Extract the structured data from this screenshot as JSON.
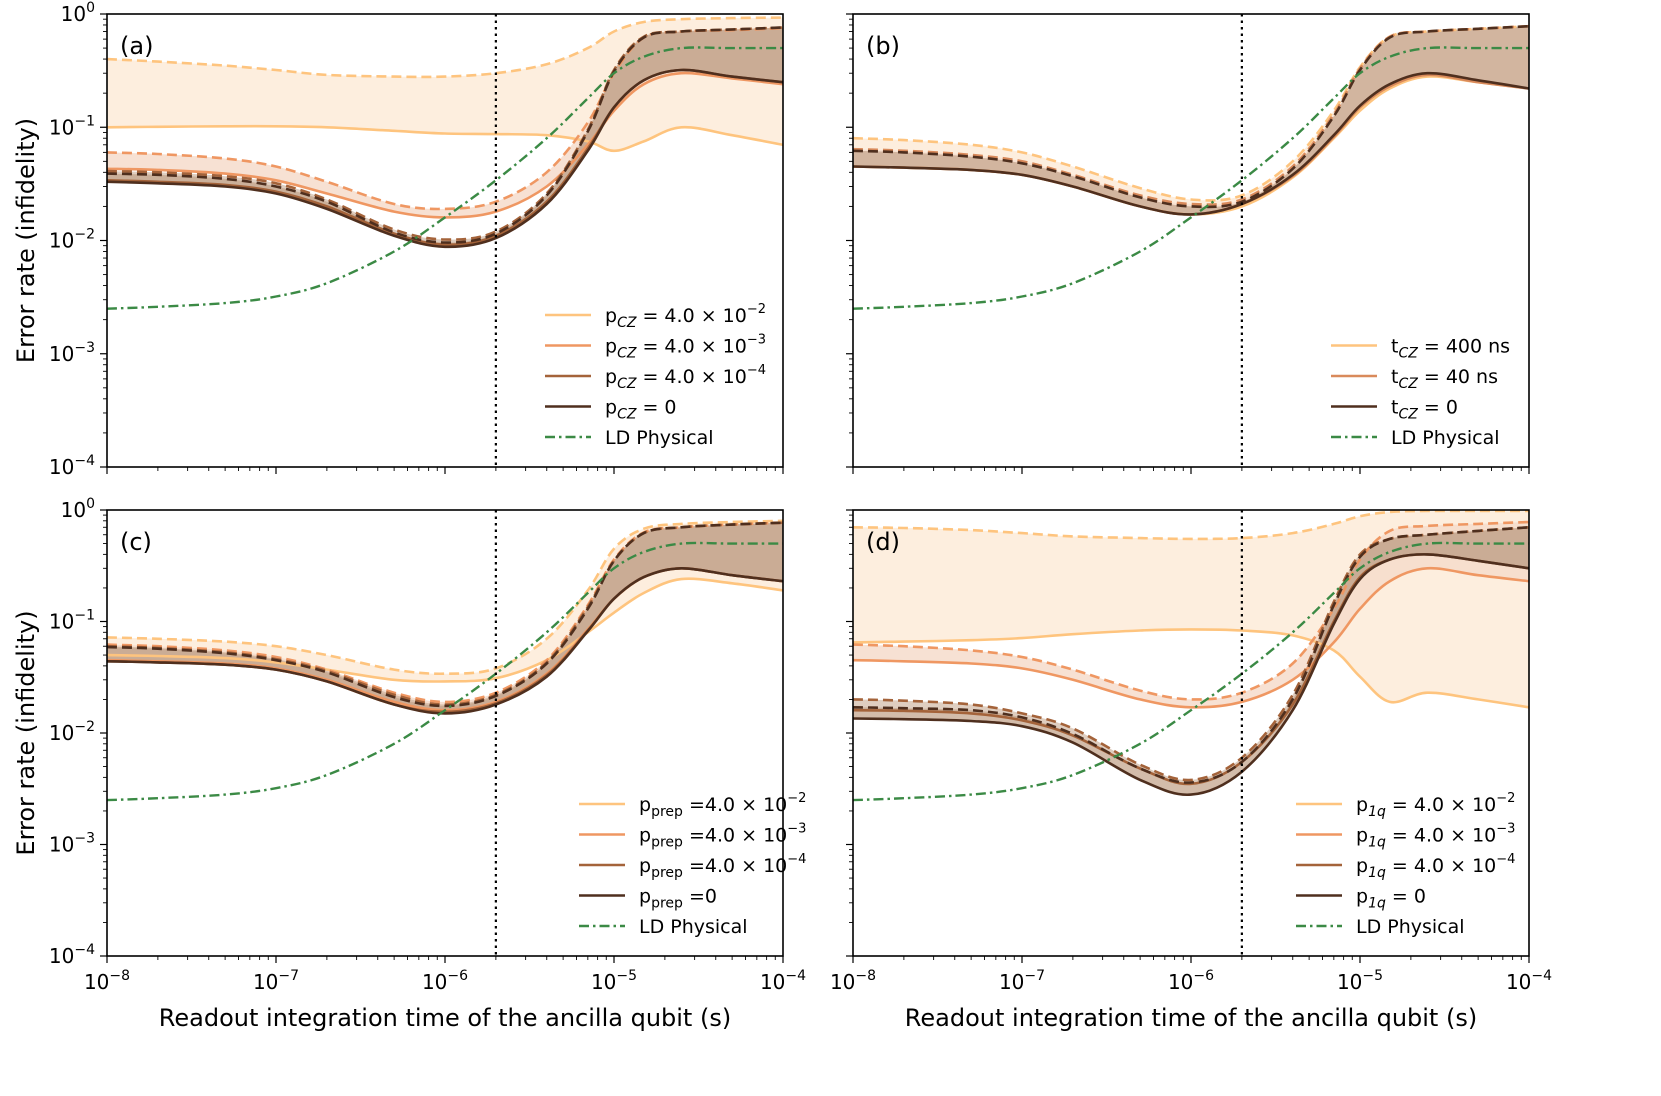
{
  "chart_data": [
    {
      "type": "line",
      "panel_label": "(a)",
      "xscale": "log",
      "yscale": "log",
      "xlim": [
        1e-08,
        0.0001
      ],
      "ylim": [
        0.0001,
        1
      ],
      "xlabel": "",
      "ylabel": "Error rate (infidelity)",
      "x_tick_labels": [],
      "y_tick_labels": [
        {
          "base": "10",
          "exp": "0"
        },
        {
          "base": "10",
          "exp": "−1"
        },
        {
          "base": "10",
          "exp": "−2"
        },
        {
          "base": "10",
          "exp": "−3"
        },
        {
          "base": "10",
          "exp": "−4"
        }
      ],
      "vline_x": 2e-06,
      "legend_position": "lower-right",
      "x": [
        1e-08,
        2e-08,
        5e-08,
        1e-07,
        2e-07,
        5e-07,
        1e-06,
        2e-06,
        4e-06,
        7e-06,
        1e-05,
        1.5e-05,
        2.5e-05,
        5e-05,
        0.0001
      ],
      "series": [
        {
          "name": "p_CZ = 4.0 × 10⁻²",
          "legend": {
            "sym": "p",
            "sub": "CZ",
            "sub_italic": true,
            "rest": " = 4.0 × 10",
            "exp": "−2"
          },
          "color_key": "light",
          "solid": [
            0.1,
            0.101,
            0.102,
            0.102,
            0.1,
            0.093,
            0.088,
            0.087,
            0.085,
            0.075,
            0.062,
            0.075,
            0.1,
            0.085,
            0.07
          ],
          "dashed": [
            0.4,
            0.38,
            0.35,
            0.32,
            0.29,
            0.28,
            0.28,
            0.3,
            0.36,
            0.5,
            0.7,
            0.85,
            0.9,
            0.92,
            0.93
          ]
        },
        {
          "name": "p_CZ = 4.0 × 10⁻³",
          "legend": {
            "sym": "p",
            "sub": "CZ",
            "sub_italic": true,
            "rest": " = 4.0 × 10",
            "exp": "−3"
          },
          "color_key": "mid",
          "solid": [
            0.043,
            0.042,
            0.039,
            0.034,
            0.026,
            0.018,
            0.016,
            0.018,
            0.03,
            0.07,
            0.14,
            0.24,
            0.3,
            0.27,
            0.24
          ],
          "dashed": [
            0.06,
            0.058,
            0.053,
            0.045,
            0.033,
            0.021,
            0.019,
            0.022,
            0.04,
            0.11,
            0.3,
            0.62,
            0.7,
            0.72,
            0.75
          ]
        },
        {
          "name": "p_CZ = 4.0 × 10⁻⁴",
          "legend": {
            "sym": "p",
            "sub": "CZ",
            "sub_italic": true,
            "rest": " = 4.0 × 10",
            "exp": "−4"
          },
          "color_key": "brown",
          "solid": [
            0.034,
            0.033,
            0.031,
            0.027,
            0.02,
            0.0115,
            0.0092,
            0.011,
            0.022,
            0.065,
            0.15,
            0.26,
            0.32,
            0.28,
            0.25
          ],
          "dashed": [
            0.041,
            0.04,
            0.037,
            0.032,
            0.023,
            0.0125,
            0.0102,
            0.012,
            0.026,
            0.095,
            0.32,
            0.63,
            0.7,
            0.73,
            0.76
          ]
        },
        {
          "name": "p_CZ = 0",
          "legend": {
            "sym": "p",
            "sub": "CZ",
            "sub_italic": true,
            "rest": " = 0",
            "exp": ""
          },
          "color_key": "dark",
          "solid": [
            0.033,
            0.032,
            0.03,
            0.026,
            0.019,
            0.011,
            0.0088,
            0.0105,
            0.021,
            0.062,
            0.15,
            0.26,
            0.32,
            0.28,
            0.25
          ],
          "dashed": [
            0.039,
            0.038,
            0.035,
            0.03,
            0.022,
            0.0118,
            0.0096,
            0.0115,
            0.025,
            0.092,
            0.31,
            0.62,
            0.7,
            0.73,
            0.76
          ]
        }
      ]
    },
    {
      "type": "line",
      "panel_label": "(b)",
      "xscale": "log",
      "yscale": "log",
      "xlim": [
        1e-08,
        0.0001
      ],
      "ylim": [
        0.0001,
        1
      ],
      "xlabel": "",
      "ylabel": "",
      "x_tick_labels": [],
      "y_tick_labels": [],
      "vline_x": 2e-06,
      "legend_position": "lower-right",
      "x": [
        1e-08,
        2e-08,
        5e-08,
        1e-07,
        2e-07,
        5e-07,
        1e-06,
        2e-06,
        4e-06,
        7e-06,
        1e-05,
        1.5e-05,
        2.5e-05,
        5e-05,
        0.0001
      ],
      "series": [
        {
          "name": "t_CZ = 400 ns",
          "legend": {
            "sym": "t",
            "sub": "CZ",
            "sub_italic": true,
            "rest": " = 400 ns",
            "exp": ""
          },
          "color_key": "light",
          "solid": [
            0.045,
            0.044,
            0.042,
            0.038,
            0.03,
            0.02,
            0.017,
            0.02,
            0.036,
            0.08,
            0.14,
            0.22,
            0.28,
            0.25,
            0.22
          ],
          "dashed": [
            0.08,
            0.077,
            0.07,
            0.06,
            0.045,
            0.029,
            0.023,
            0.025,
            0.05,
            0.14,
            0.34,
            0.63,
            0.7,
            0.74,
            0.78
          ]
        },
        {
          "name": "t_CZ = 40 ns",
          "legend": {
            "sym": "t",
            "sub": "CZ",
            "sub_italic": true,
            "rest": " = 40 ns",
            "exp": ""
          },
          "color_key": "mid2",
          "solid": [
            0.045,
            0.044,
            0.042,
            0.038,
            0.03,
            0.02,
            0.017,
            0.021,
            0.037,
            0.082,
            0.15,
            0.23,
            0.29,
            0.25,
            0.22
          ],
          "dashed": [
            0.064,
            0.062,
            0.057,
            0.05,
            0.038,
            0.025,
            0.021,
            0.023,
            0.045,
            0.13,
            0.33,
            0.63,
            0.7,
            0.74,
            0.78
          ]
        },
        {
          "name": "t_CZ = 0",
          "legend": {
            "sym": "t",
            "sub": "CZ",
            "sub_italic": true,
            "rest": " = 0",
            "exp": ""
          },
          "color_key": "dark",
          "solid": [
            0.045,
            0.044,
            0.042,
            0.038,
            0.03,
            0.02,
            0.017,
            0.021,
            0.038,
            0.085,
            0.155,
            0.24,
            0.3,
            0.26,
            0.22
          ],
          "dashed": [
            0.062,
            0.06,
            0.055,
            0.048,
            0.037,
            0.024,
            0.02,
            0.022,
            0.043,
            0.125,
            0.32,
            0.62,
            0.7,
            0.74,
            0.78
          ]
        }
      ]
    },
    {
      "type": "line",
      "panel_label": "(c)",
      "xscale": "log",
      "yscale": "log",
      "xlim": [
        1e-08,
        0.0001
      ],
      "ylim": [
        0.0001,
        1
      ],
      "xlabel": "Readout integration time of the ancilla qubit (s)",
      "ylabel": "Error rate (infidelity)",
      "x_tick_labels": [
        {
          "base": "10",
          "exp": "−8"
        },
        {
          "base": "10",
          "exp": "−7"
        },
        {
          "base": "10",
          "exp": "−6"
        },
        {
          "base": "10",
          "exp": "−5"
        },
        {
          "base": "10",
          "exp": "−4"
        }
      ],
      "y_tick_labels": [
        {
          "base": "10",
          "exp": "0"
        },
        {
          "base": "10",
          "exp": "−1"
        },
        {
          "base": "10",
          "exp": "−2"
        },
        {
          "base": "10",
          "exp": "−3"
        },
        {
          "base": "10",
          "exp": "−4"
        }
      ],
      "vline_x": 2e-06,
      "legend_position": "lower-right",
      "x": [
        1e-08,
        2e-08,
        5e-08,
        1e-07,
        2e-07,
        5e-07,
        1e-06,
        2e-06,
        4e-06,
        7e-06,
        1e-05,
        1.5e-05,
        2.5e-05,
        5e-05,
        0.0001
      ],
      "series": [
        {
          "name": "p_prep = 4.0 × 10⁻²",
          "legend": {
            "sym": "p",
            "sub": "prep",
            "sub_italic": false,
            "rest": " =4.0 × 10",
            "exp": "−2"
          },
          "color_key": "light",
          "solid": [
            0.05,
            0.049,
            0.047,
            0.043,
            0.037,
            0.03,
            0.029,
            0.031,
            0.045,
            0.08,
            0.12,
            0.18,
            0.24,
            0.22,
            0.19
          ],
          "dashed": [
            0.072,
            0.07,
            0.066,
            0.06,
            0.05,
            0.037,
            0.034,
            0.038,
            0.07,
            0.19,
            0.45,
            0.68,
            0.75,
            0.78,
            0.8
          ]
        },
        {
          "name": "p_prep = 4.0 × 10⁻³",
          "legend": {
            "sym": "p",
            "sub": "prep",
            "sub_italic": false,
            "rest": " =4.0 × 10",
            "exp": "−3"
          },
          "color_key": "mid",
          "solid": [
            0.045,
            0.044,
            0.042,
            0.038,
            0.03,
            0.019,
            0.016,
            0.019,
            0.034,
            0.085,
            0.16,
            0.25,
            0.3,
            0.26,
            0.23
          ],
          "dashed": [
            0.062,
            0.06,
            0.055,
            0.048,
            0.037,
            0.023,
            0.019,
            0.023,
            0.045,
            0.14,
            0.36,
            0.63,
            0.7,
            0.74,
            0.77
          ]
        },
        {
          "name": "p_prep = 4.0 × 10⁻⁴",
          "legend": {
            "sym": "p",
            "sub": "prep",
            "sub_italic": false,
            "rest": " =4.0 × 10",
            "exp": "−4"
          },
          "color_key": "brown",
          "solid": [
            0.044,
            0.043,
            0.041,
            0.037,
            0.029,
            0.018,
            0.0155,
            0.0185,
            0.033,
            0.083,
            0.16,
            0.25,
            0.3,
            0.26,
            0.23
          ],
          "dashed": [
            0.06,
            0.058,
            0.053,
            0.046,
            0.036,
            0.022,
            0.018,
            0.022,
            0.043,
            0.135,
            0.35,
            0.62,
            0.7,
            0.74,
            0.77
          ]
        },
        {
          "name": "p_prep = 0",
          "legend": {
            "sym": "p",
            "sub": "prep",
            "sub_italic": false,
            "rest": " =0",
            "exp": ""
          },
          "color_key": "dark",
          "solid": [
            0.044,
            0.043,
            0.041,
            0.037,
            0.029,
            0.018,
            0.015,
            0.018,
            0.032,
            0.082,
            0.16,
            0.25,
            0.3,
            0.26,
            0.23
          ],
          "dashed": [
            0.059,
            0.057,
            0.052,
            0.045,
            0.035,
            0.021,
            0.0175,
            0.0215,
            0.042,
            0.13,
            0.35,
            0.62,
            0.7,
            0.74,
            0.77
          ]
        }
      ]
    },
    {
      "type": "line",
      "panel_label": "(d)",
      "xscale": "log",
      "yscale": "log",
      "xlim": [
        1e-08,
        0.0001
      ],
      "ylim": [
        0.0001,
        1
      ],
      "xlabel": "Readout integration time of the ancilla qubit (s)",
      "ylabel": "",
      "x_tick_labels": [
        {
          "base": "10",
          "exp": "−8"
        },
        {
          "base": "10",
          "exp": "−7"
        },
        {
          "base": "10",
          "exp": "−6"
        },
        {
          "base": "10",
          "exp": "−5"
        },
        {
          "base": "10",
          "exp": "−4"
        }
      ],
      "y_tick_labels": [],
      "vline_x": 2e-06,
      "legend_position": "lower-right",
      "x": [
        1e-08,
        2e-08,
        5e-08,
        1e-07,
        2e-07,
        5e-07,
        1e-06,
        2e-06,
        4e-06,
        7e-06,
        1e-05,
        1.5e-05,
        2.5e-05,
        5e-05,
        0.0001
      ],
      "series": [
        {
          "name": "p_1q = 4.0 × 10⁻²",
          "legend": {
            "sym": "p",
            "sub": "1q",
            "sub_italic": true,
            "rest": " = 4.0 × 10",
            "exp": "−2"
          },
          "color_key": "light",
          "solid": [
            0.065,
            0.066,
            0.068,
            0.071,
            0.077,
            0.083,
            0.085,
            0.083,
            0.075,
            0.055,
            0.032,
            0.019,
            0.023,
            0.02,
            0.017
          ],
          "dashed": [
            0.7,
            0.69,
            0.66,
            0.62,
            0.58,
            0.56,
            0.55,
            0.56,
            0.62,
            0.75,
            0.88,
            0.96,
            0.98,
            0.98,
            0.98
          ]
        },
        {
          "name": "p_1q = 4.0 × 10⁻³",
          "legend": {
            "sym": "p",
            "sub": "1q",
            "sub_italic": true,
            "rest": " = 4.0 × 10",
            "exp": "−3"
          },
          "color_key": "mid",
          "solid": [
            0.045,
            0.044,
            0.042,
            0.038,
            0.03,
            0.02,
            0.017,
            0.019,
            0.03,
            0.065,
            0.13,
            0.23,
            0.3,
            0.26,
            0.23
          ],
          "dashed": [
            0.062,
            0.06,
            0.055,
            0.048,
            0.037,
            0.024,
            0.02,
            0.023,
            0.042,
            0.13,
            0.36,
            0.65,
            0.72,
            0.75,
            0.78
          ]
        },
        {
          "name": "p_1q = 4.0 × 10⁻⁴",
          "legend": {
            "sym": "p",
            "sub": "1q",
            "sub_italic": true,
            "rest": " = 4.0 × 10",
            "exp": "−4"
          },
          "color_key": "brown",
          "solid": [
            0.016,
            0.0158,
            0.015,
            0.013,
            0.0095,
            0.0048,
            0.0035,
            0.0055,
            0.018,
            0.1,
            0.25,
            0.36,
            0.4,
            0.35,
            0.3
          ],
          "dashed": [
            0.02,
            0.0195,
            0.018,
            0.015,
            0.011,
            0.0052,
            0.0038,
            0.006,
            0.022,
            0.15,
            0.4,
            0.55,
            0.6,
            0.65,
            0.7
          ]
        },
        {
          "name": "p_1q = 0",
          "legend": {
            "sym": "p",
            "sub": "1q",
            "sub_italic": true,
            "rest": " = 0",
            "exp": ""
          },
          "color_key": "dark",
          "solid": [
            0.0135,
            0.0133,
            0.0128,
            0.0115,
            0.0082,
            0.0038,
            0.0028,
            0.0045,
            0.016,
            0.095,
            0.24,
            0.36,
            0.4,
            0.35,
            0.3
          ],
          "dashed": [
            0.017,
            0.0167,
            0.016,
            0.0138,
            0.0098,
            0.0048,
            0.0036,
            0.0055,
            0.02,
            0.14,
            0.38,
            0.55,
            0.6,
            0.65,
            0.7
          ]
        }
      ]
    }
  ],
  "ld_physical": {
    "name": "LD Physical",
    "x": [
      1e-08,
      2e-08,
      5e-08,
      1e-07,
      2e-07,
      5e-07,
      1e-06,
      2e-06,
      4e-06,
      7e-06,
      1e-05,
      1.5e-05,
      2.5e-05,
      5e-05,
      0.0001
    ],
    "y": [
      0.0025,
      0.0026,
      0.0028,
      0.0032,
      0.0042,
      0.008,
      0.016,
      0.034,
      0.08,
      0.18,
      0.3,
      0.42,
      0.5,
      0.5,
      0.5
    ]
  },
  "colors": {
    "light": "#fec47e",
    "mid": "#ef9762",
    "mid2": "#d98a5b",
    "brown": "#a4633a",
    "dark": "#4f2f1e",
    "green": "#3b8a45",
    "band_light": "#fdeede",
    "band_mid": "#f6dccb",
    "band_dark": "#c4a58d"
  }
}
